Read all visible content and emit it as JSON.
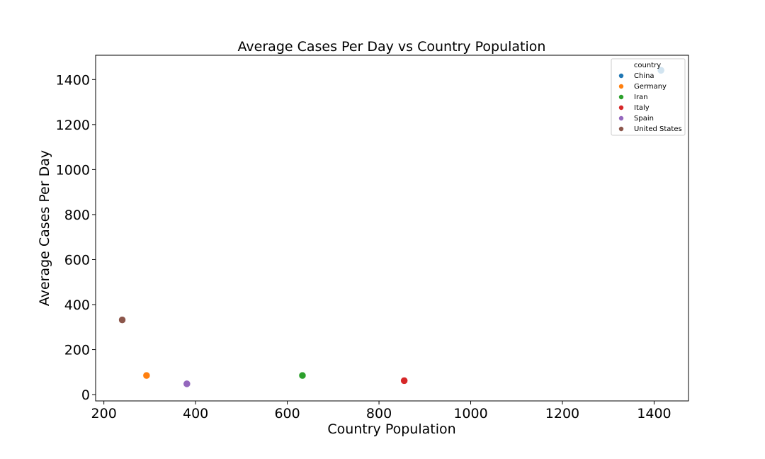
{
  "chart_data": {
    "type": "scatter",
    "title": "Average Cases Per Day vs Country Population",
    "xlabel": "Country Population",
    "ylabel": "Average Cases Per Day",
    "xlim": [
      182,
      1475
    ],
    "ylim": [
      -28,
      1508
    ],
    "xticks": [
      200,
      400,
      600,
      800,
      1000,
      1200,
      1400
    ],
    "yticks": [
      0,
      200,
      400,
      600,
      800,
      1000,
      1200,
      1400
    ],
    "grid": false,
    "legend": {
      "title": "country",
      "placement": "top-right"
    },
    "series": [
      {
        "name": "China",
        "color": "#1f77b4",
        "x": [
          1415
        ],
        "y": [
          1441
        ]
      },
      {
        "name": "Germany",
        "color": "#ff7f0e",
        "x": [
          293
        ],
        "y": [
          85
        ]
      },
      {
        "name": "Iran",
        "color": "#2ca02c",
        "x": [
          633
        ],
        "y": [
          85
        ]
      },
      {
        "name": "Italy",
        "color": "#d62728",
        "x": [
          855
        ],
        "y": [
          62
        ]
      },
      {
        "name": "Spain",
        "color": "#9467bd",
        "x": [
          381
        ],
        "y": [
          48
        ]
      },
      {
        "name": "United States",
        "color": "#8c564b",
        "x": [
          240
        ],
        "y": [
          332
        ]
      }
    ]
  }
}
